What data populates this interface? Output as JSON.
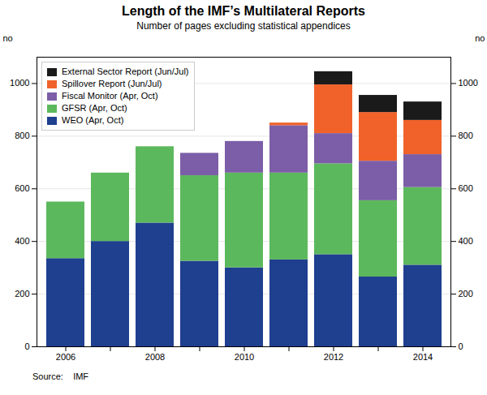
{
  "chart_data": {
    "type": "bar",
    "stacked": true,
    "title": "Length of the IMF’s Multilateral Reports",
    "subtitle": "Number of pages excluding statistical appendices",
    "source": "Source:    IMF",
    "categories": [
      "2006",
      null,
      "2008",
      null,
      "2010",
      null,
      "2012",
      null,
      "2014"
    ],
    "series": [
      {
        "name": "WEO (Apr, Oct)",
        "color": "#1f3f8f",
        "values": [
          335,
          400,
          470,
          325,
          300,
          330,
          350,
          265,
          310
        ]
      },
      {
        "name": "GFSR (Apr, Oct)",
        "color": "#5cb85c",
        "values": [
          215,
          260,
          290,
          325,
          360,
          330,
          345,
          290,
          295
        ]
      },
      {
        "name": "Fiscal Monitor (Apr, Oct)",
        "color": "#7b5ea7",
        "values": [
          0,
          0,
          0,
          85,
          120,
          180,
          115,
          150,
          125
        ]
      },
      {
        "name": "Spillover Report (Jun/Jul)",
        "color": "#f0622a",
        "values": [
          0,
          0,
          0,
          0,
          0,
          10,
          185,
          185,
          130
        ]
      },
      {
        "name": "External Sector Report (Jun/Jul)",
        "color": "#1a1a1a",
        "values": [
          0,
          0,
          0,
          0,
          0,
          0,
          50,
          65,
          70
        ]
      }
    ],
    "ylim": [
      0,
      1100
    ],
    "yticks": [
      0,
      200,
      400,
      600,
      800,
      1000
    ],
    "ylabel": "no",
    "y2lim": [
      0,
      1100
    ],
    "y2ticks": [
      0,
      200,
      400,
      600,
      800,
      1000
    ],
    "y2label": "no",
    "grid": true,
    "legend": "upper left"
  }
}
